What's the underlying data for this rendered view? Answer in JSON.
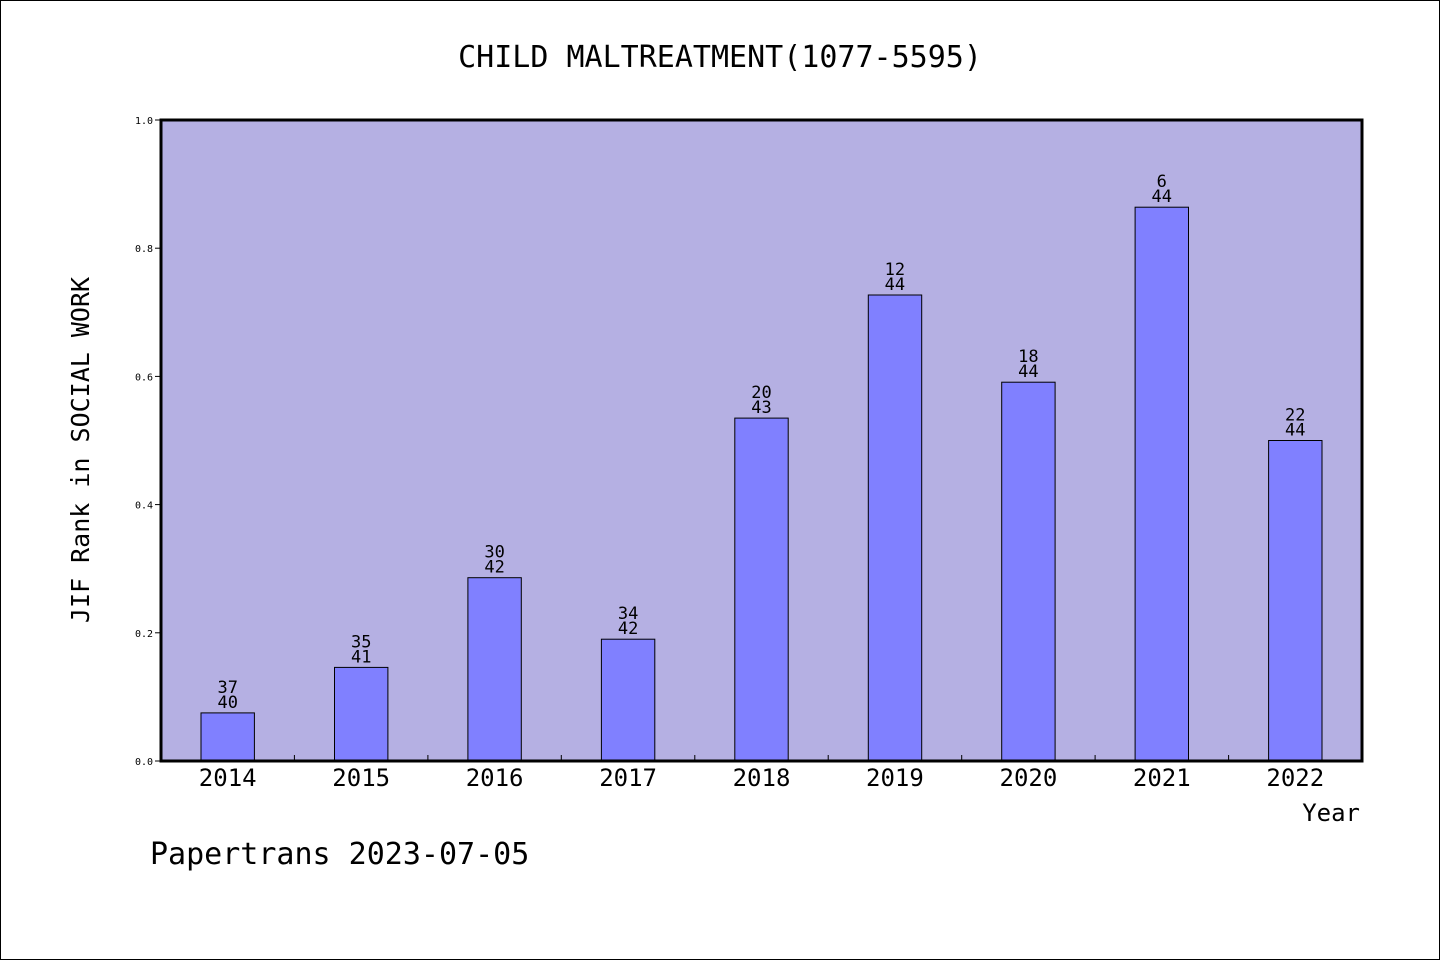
{
  "chart_data": {
    "type": "bar",
    "title": "CHILD MALTREATMENT(1077-5595)",
    "xlabel": "Year",
    "ylabel": "JIF Rank in SOCIAL WORK",
    "categories": [
      "2014",
      "2015",
      "2016",
      "2017",
      "2018",
      "2019",
      "2020",
      "2021",
      "2022"
    ],
    "values": [
      0.075,
      0.146,
      0.286,
      0.19,
      0.535,
      0.727,
      0.591,
      0.864,
      0.5
    ],
    "bar_labels": [
      {
        "rank": "37",
        "total": "40"
      },
      {
        "rank": "35",
        "total": "41"
      },
      {
        "rank": "30",
        "total": "42"
      },
      {
        "rank": "34",
        "total": "42"
      },
      {
        "rank": "20",
        "total": "43"
      },
      {
        "rank": "12",
        "total": "44"
      },
      {
        "rank": "18",
        "total": "44"
      },
      {
        "rank": "6",
        "total": "44"
      },
      {
        "rank": "22",
        "total": "44"
      }
    ],
    "yticks": [
      "0.0",
      "0.2",
      "0.4",
      "0.6",
      "0.8",
      "1.0"
    ],
    "ylim": [
      0,
      1.0
    ],
    "grid": false,
    "legend": "none",
    "colors": {
      "plot_background": "#b5b0e3",
      "bar_fill": "#8080ff",
      "bar_stroke": "#000000"
    }
  },
  "footer": {
    "text": "Papertrans 2023-07-05"
  }
}
